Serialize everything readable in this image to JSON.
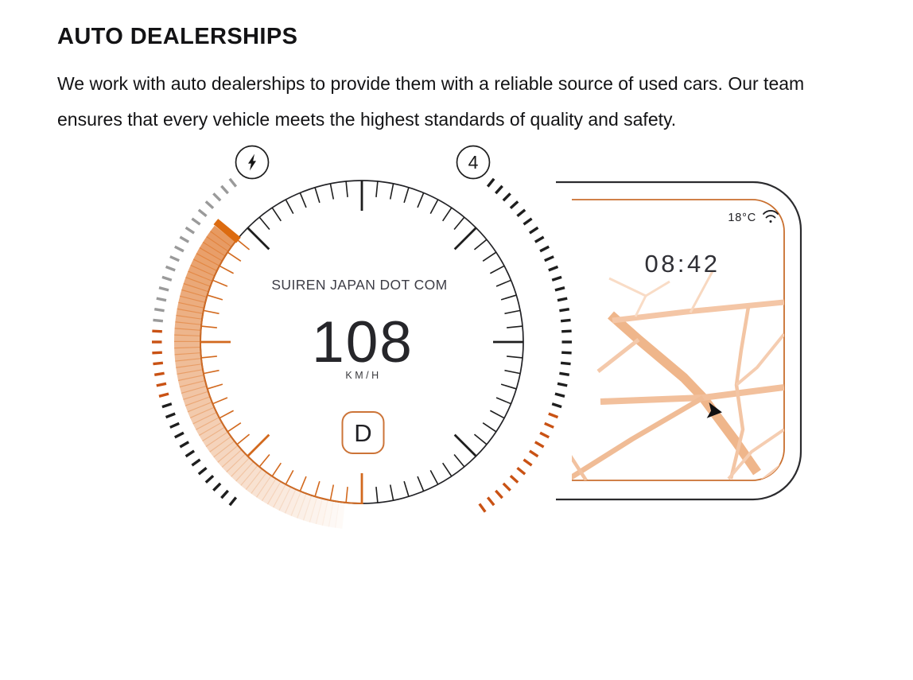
{
  "header": {
    "title": "AUTO DEALERSHIPS",
    "description": "We work with auto dealerships to provide them with a reliable source of used cars. Our team ensures that every vehicle meets the highest standards of quality and safety."
  },
  "gauge": {
    "brand_text": "SUIREN JAPAN DOT COM",
    "speed_value": "108",
    "speed_unit": "KM/H",
    "gear_indicator": "D",
    "top_badge_value": "4",
    "icons": {
      "left_badge": "lightning-bolt-icon",
      "right_badge": "gear-count-badge"
    }
  },
  "nav_panel": {
    "temperature": "18°C",
    "time": "08:42",
    "icons": {
      "signal": "wifi-icon",
      "position": "navigation-arrow-icon"
    }
  },
  "colors": {
    "ink": "#1E1E1E",
    "accent_orange": "#DC6B10",
    "band_orange": "#E07C33",
    "tick_orange": "#D2691E",
    "dash_orange": "#C95214",
    "dash_gray": "#9A9A9A",
    "circle_orange": "#CE6A24",
    "panel_border": "#2B2B2E",
    "panel_inner_border": "#C96F2E",
    "road_base": "#EFB68B"
  }
}
